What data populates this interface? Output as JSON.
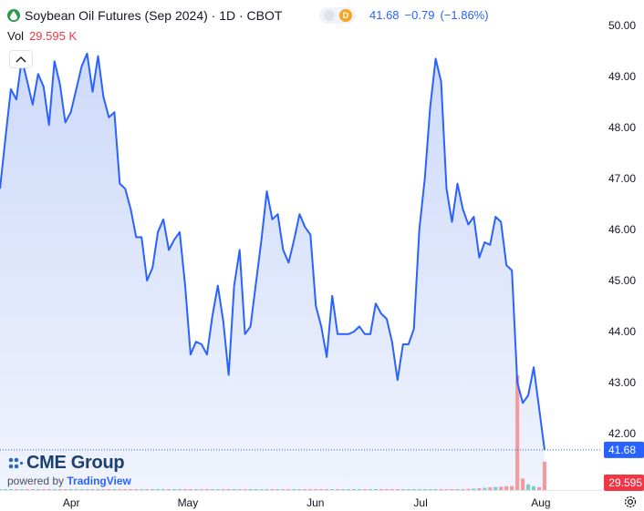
{
  "header": {
    "title": "Soybean Oil Futures (Sep 2024) · 1D · CBOT",
    "badge": "D",
    "last": "41.68",
    "change": "−0.79",
    "change_pct": "(−1.86%)",
    "vol_label": "Vol",
    "vol_value": "29.595 K"
  },
  "branding": {
    "logo": "CME Group",
    "powered_prefix": "powered by",
    "powered_brand": "TradingView"
  },
  "colors": {
    "line": "#2962ff",
    "fill": "#dde5fb",
    "vol_up": "#7ccfc4",
    "vol_down": "#f49a9d",
    "last_price_label": "#2962ff",
    "vol_label": "#f23645"
  },
  "chart_data": {
    "type": "area",
    "y_axis_position": "right",
    "ylim": [
      41.0,
      50.2
    ],
    "y_ticks": [
      "50.00",
      "49.00",
      "48.00",
      "47.00",
      "46.00",
      "45.00",
      "44.00",
      "43.00",
      "42.00"
    ],
    "x_tick_labels": [
      "Apr",
      "May",
      "Jun",
      "Jul",
      "Aug"
    ],
    "last_price_label": "41.68",
    "volume_label": "29.595",
    "series": [
      {
        "values": [
          46.8,
          47.8,
          48.75,
          48.55,
          49.35,
          48.9,
          48.45,
          49.05,
          48.8,
          48.05,
          49.3,
          48.85,
          48.1,
          48.3,
          48.75,
          49.2,
          49.45,
          48.7,
          49.4,
          48.6,
          48.2,
          48.3,
          46.9,
          46.8,
          46.4,
          45.85,
          45.85,
          45.0,
          45.25,
          45.95,
          46.2,
          45.6,
          45.8,
          45.95,
          44.9,
          43.55,
          43.8,
          43.75,
          43.55,
          44.3,
          44.9,
          44.2,
          43.15,
          44.9,
          45.6,
          43.95,
          44.1,
          44.95,
          45.8,
          46.75,
          46.2,
          46.3,
          45.6,
          45.35,
          45.8,
          46.3,
          46.05,
          45.9,
          44.5,
          44.1,
          43.5,
          44.7,
          43.95,
          43.95,
          43.95,
          44.0,
          44.1,
          43.95,
          43.95,
          44.55,
          44.35,
          44.25,
          43.8,
          43.05,
          43.75,
          43.75,
          44.05,
          46.0,
          47.0,
          48.4,
          49.35,
          48.9,
          46.8,
          46.15,
          46.9,
          46.4,
          46.1,
          46.25,
          45.45,
          45.75,
          45.7,
          46.25,
          46.15,
          45.3,
          45.2,
          43.0,
          42.6,
          42.75,
          43.3,
          42.5,
          41.68
        ]
      }
    ],
    "volume": {
      "values": [
        0.15,
        0.15,
        0.1,
        0.1,
        0.15,
        0.1,
        0.1,
        0.15,
        0.12,
        0.1,
        0.12,
        0.1,
        0.1,
        0.12,
        0.15,
        0.1,
        0.1,
        0.12,
        0.1,
        0.12,
        0.1,
        0.1,
        0.15,
        0.12,
        0.1,
        0.1,
        0.12,
        0.15,
        0.1,
        0.1,
        0.12,
        0.1,
        0.1,
        0.1,
        0.15,
        0.12,
        0.1,
        0.1,
        0.12,
        0.1,
        0.1,
        0.12,
        0.15,
        0.1,
        0.1,
        0.12,
        0.1,
        0.1,
        0.12,
        0.1,
        0.1,
        0.15,
        0.1,
        0.1,
        0.12,
        0.1,
        0.1,
        0.12,
        0.15,
        0.1,
        0.12,
        0.1,
        0.1,
        0.1,
        0.12,
        0.1,
        0.1,
        0.15,
        0.12,
        0.1,
        0.1,
        0.12,
        0.1,
        0.15,
        0.12,
        0.15,
        0.2,
        0.25,
        0.3,
        0.35,
        0.4,
        0.45,
        0.5,
        0.6,
        0.8,
        1.0,
        1.2,
        1.5,
        1.9,
        2.3,
        2.8,
        3.2,
        3.6,
        4.0,
        4.2,
        120.0,
        12.0,
        6.0,
        4.0,
        3.0,
        29.595
      ],
      "unit": "K"
    }
  }
}
